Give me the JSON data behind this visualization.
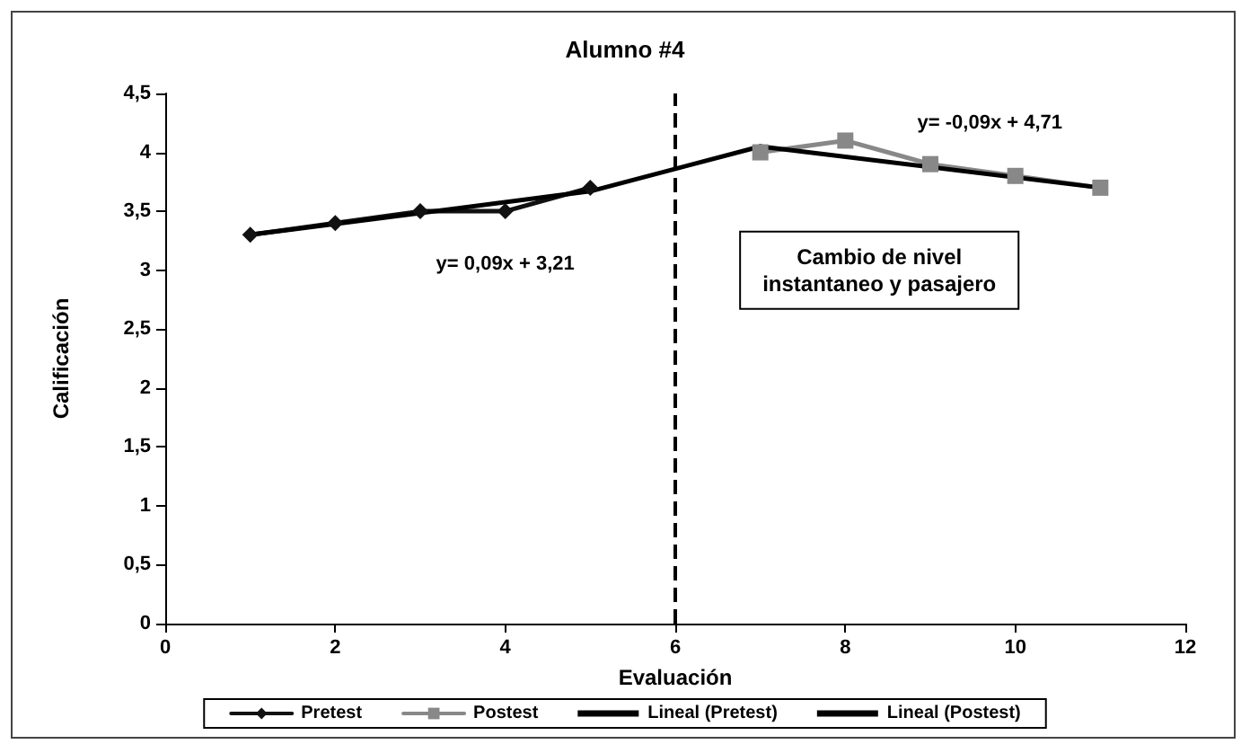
{
  "chart_data": {
    "type": "line",
    "title": "Alumno #4",
    "xlabel": "Evaluación",
    "ylabel": "Calificación",
    "xlim": [
      0,
      12
    ],
    "xticks": [
      0,
      2,
      4,
      6,
      8,
      10,
      12
    ],
    "ylim": [
      0,
      4.5
    ],
    "yticks": [
      {
        "value": 0,
        "label": "0"
      },
      {
        "value": 0.5,
        "label": "0,5"
      },
      {
        "value": 1,
        "label": "1"
      },
      {
        "value": 1.5,
        "label": "1,5"
      },
      {
        "value": 2,
        "label": "2"
      },
      {
        "value": 2.5,
        "label": "2,5"
      },
      {
        "value": 3,
        "label": "3"
      },
      {
        "value": 3.5,
        "label": "3,5"
      },
      {
        "value": 4,
        "label": "4"
      },
      {
        "value": 4.5,
        "label": "4,5"
      }
    ],
    "grid": false,
    "legend": "bottom",
    "series": [
      {
        "name": "Pretest",
        "color": "#111111",
        "marker": "diamond",
        "x": [
          1,
          2,
          3,
          4,
          5
        ],
        "values": [
          3.3,
          3.4,
          3.5,
          3.5,
          3.7
        ]
      },
      {
        "name": "Postest",
        "color": "#888888",
        "marker": "square",
        "x": [
          7,
          8,
          9,
          10,
          11
        ],
        "values": [
          4.0,
          4.1,
          3.9,
          3.8,
          3.7
        ]
      },
      {
        "name": "Lineal (Pretest)",
        "color": "#000000",
        "marker": "none",
        "x": [
          1,
          5,
          7
        ],
        "values": [
          3.3,
          3.67,
          4.05
        ]
      },
      {
        "name": "Lineal (Postest)",
        "color": "#000000",
        "marker": "none",
        "x": [
          7,
          11
        ],
        "values": [
          4.05,
          3.7
        ]
      }
    ],
    "ref_lines": [
      {
        "axis": "x",
        "value": 6,
        "line_style": "dashed",
        "color": "#000000"
      }
    ],
    "annotations": [
      "y= 0,09x + 3,21",
      "y= -0,09x + 4,71",
      "Cambio de nivel\ninstantaneo y pasajero"
    ]
  }
}
